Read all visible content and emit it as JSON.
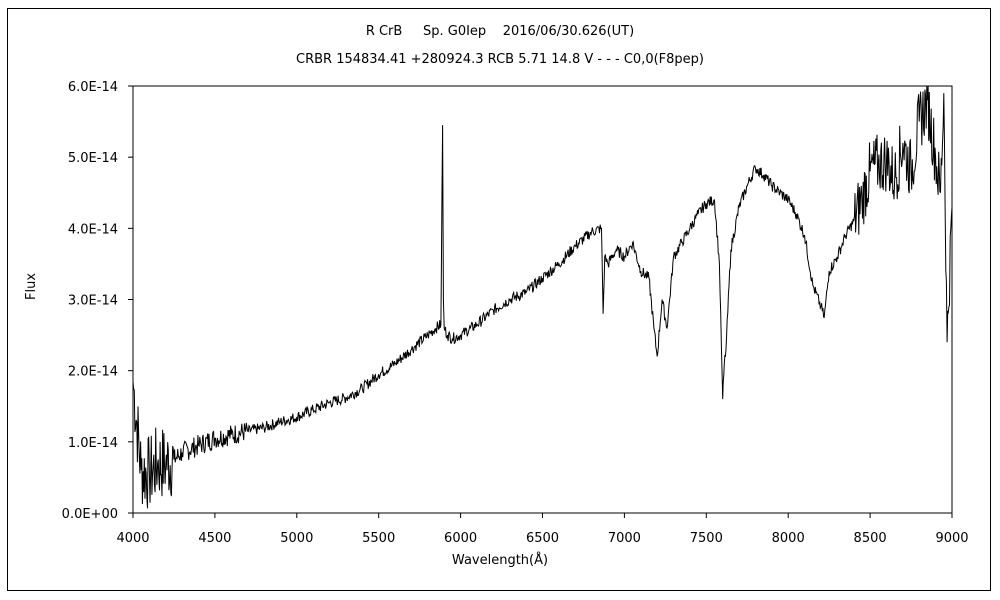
{
  "chart_data": {
    "type": "line",
    "title": "R CrB     Sp. G0Iep    2016/06/30.626(UT)",
    "subtitle": "CRBR 154834.41 +280924.3 RCB 5.71 14.8 V - - - C0,0(F8pep)",
    "xlabel": "Wavelength(Å)",
    "ylabel": "Flux",
    "xlim": [
      4000,
      9000
    ],
    "ylim": [
      0,
      6e-14
    ],
    "x_ticks": [
      "4000",
      "4500",
      "5000",
      "5500",
      "6000",
      "6500",
      "7000",
      "7500",
      "8000",
      "8500",
      "9000"
    ],
    "y_ticks": [
      "0.0E+00",
      "1.0E-14",
      "2.0E-14",
      "3.0E-14",
      "4.0E-14",
      "5.0E-14",
      "6.0E-14"
    ],
    "grid": false,
    "series": [
      {
        "x": [
          4000,
          4050,
          4100,
          4150,
          4200,
          4250,
          4300,
          4400,
          4500,
          4600,
          4700,
          4800,
          4900,
          5000,
          5100,
          5200,
          5300,
          5400,
          5500,
          5600,
          5700,
          5800,
          5850,
          5880,
          5890,
          5895,
          5900,
          5920,
          5950,
          6000,
          6100,
          6200,
          6300,
          6400,
          6500,
          6600,
          6700,
          6800,
          6860,
          6870,
          6880,
          6900,
          6950,
          7000,
          7050,
          7100,
          7150,
          7180,
          7200,
          7230,
          7260,
          7300,
          7350,
          7400,
          7450,
          7500,
          7550,
          7580,
          7600,
          7610,
          7620,
          7650,
          7700,
          7750,
          7800,
          7850,
          7900,
          7950,
          8000,
          8050,
          8100,
          8150,
          8200,
          8220,
          8250,
          8300,
          8350,
          8400,
          8450,
          8500,
          8550,
          8600,
          8650,
          8700,
          8750,
          8800,
          8850,
          8900,
          8930,
          8950,
          8970,
          9000
        ],
        "y": [
          1.85e-14,
          6e-15,
          5.5e-15,
          7e-15,
          7e-15,
          7.5e-15,
          8.5e-15,
          9.5e-15,
          1.05e-14,
          1.1e-14,
          1.15e-14,
          1.2e-14,
          1.28e-14,
          1.35e-14,
          1.45e-14,
          1.55e-14,
          1.62e-14,
          1.75e-14,
          1.95e-14,
          2.1e-14,
          2.3e-14,
          2.5e-14,
          2.6e-14,
          2.65e-14,
          5.45e-14,
          3e-14,
          2.6e-14,
          2.5e-14,
          2.45e-14,
          2.5e-14,
          2.65e-14,
          2.85e-14,
          3e-14,
          3.1e-14,
          3.3e-14,
          3.5e-14,
          3.75e-14,
          3.95e-14,
          4e-14,
          2.8e-14,
          3.6e-14,
          3.5e-14,
          3.7e-14,
          3.6e-14,
          3.8e-14,
          3.4e-14,
          3.3e-14,
          2.6e-14,
          2.2e-14,
          3e-14,
          2.6e-14,
          3.6e-14,
          3.8e-14,
          4e-14,
          4.2e-14,
          4.35e-14,
          4.4e-14,
          3.5e-14,
          1.6e-14,
          2.1e-14,
          2.3e-14,
          3.7e-14,
          4.3e-14,
          4.6e-14,
          4.85e-14,
          4.75e-14,
          4.6e-14,
          4.5e-14,
          4.4e-14,
          4.2e-14,
          3.9e-14,
          3.2e-14,
          2.9e-14,
          2.75e-14,
          3.4e-14,
          3.6e-14,
          3.9e-14,
          4.1e-14,
          4.4e-14,
          4.8e-14,
          4.9e-14,
          4.95e-14,
          4.7e-14,
          5.2e-14,
          4.8e-14,
          5.5e-14,
          5.8e-14,
          5e-14,
          4.5e-14,
          5.9e-14,
          2.4e-14,
          4.3e-14
        ]
      }
    ]
  }
}
